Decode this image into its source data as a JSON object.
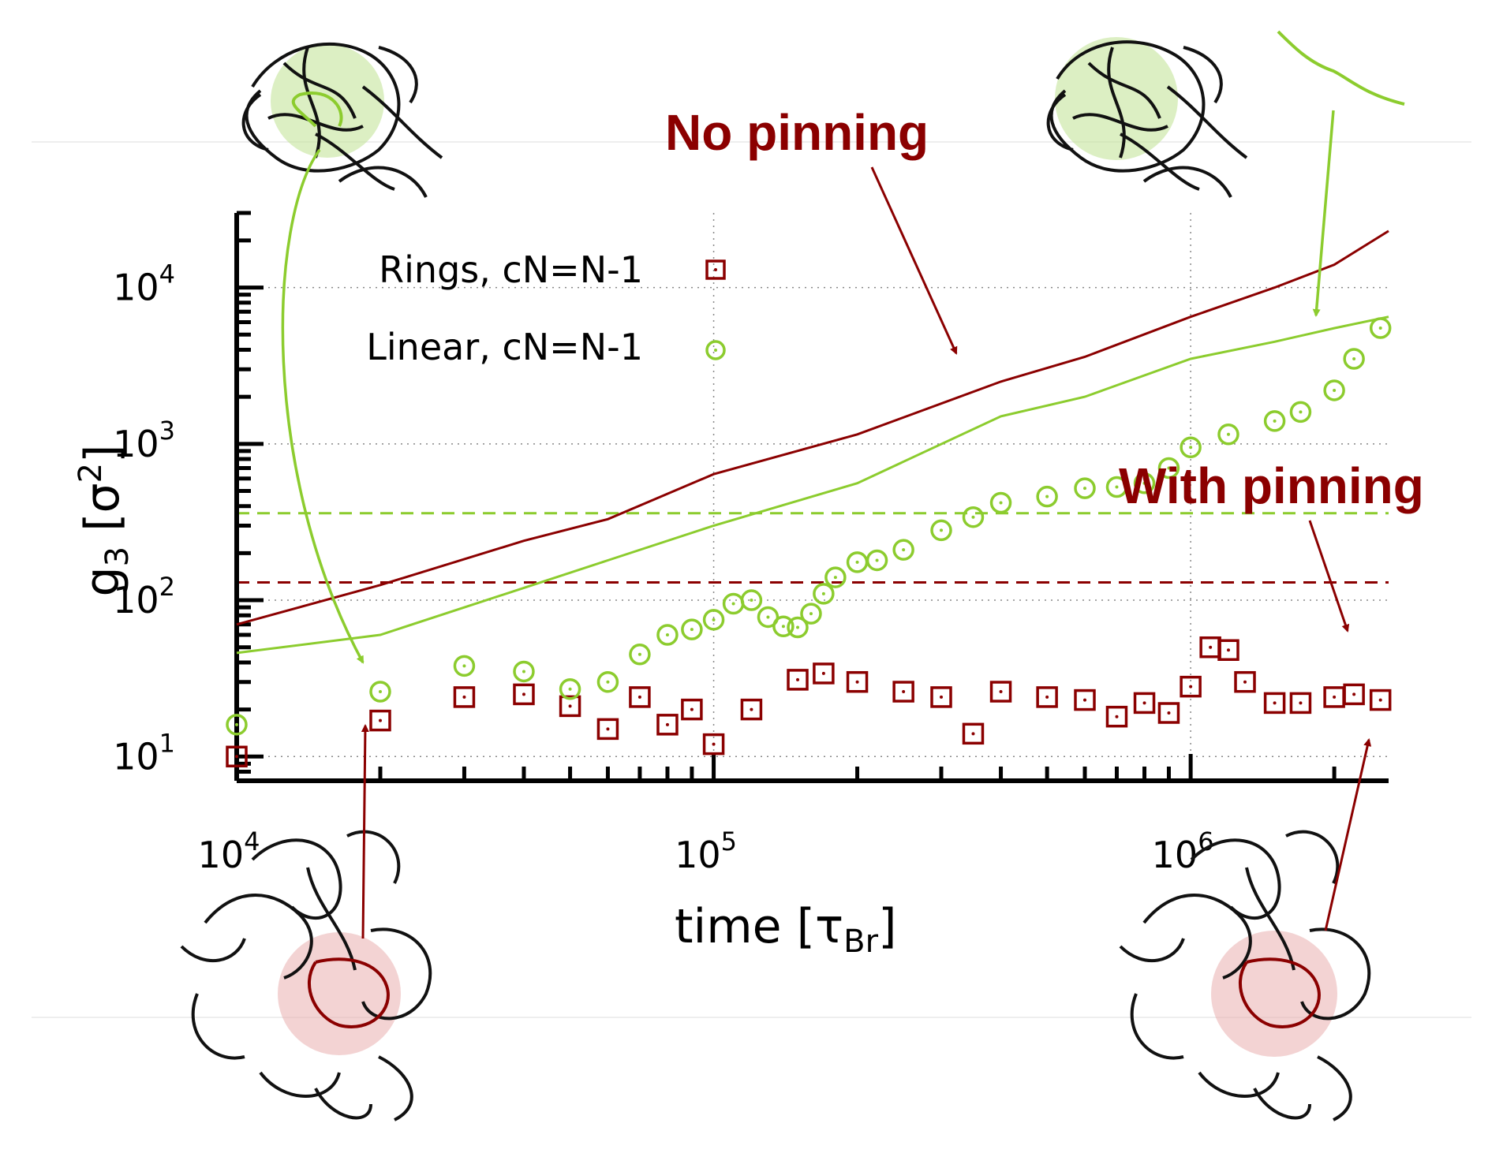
{
  "chart_data": {
    "type": "scatter",
    "title": "",
    "xlabel": "time [τBr]",
    "ylabel": "g3 [σ2]",
    "xscale": "log",
    "yscale": "log",
    "xlim": [
      10000,
      2600000
    ],
    "ylim": [
      7,
      30000
    ],
    "x_ticks": [
      {
        "base": "10",
        "exp": "4"
      },
      {
        "base": "10",
        "exp": "5"
      },
      {
        "base": "10",
        "exp": "6"
      }
    ],
    "y_ticks": [
      {
        "base": "10",
        "exp": "1"
      },
      {
        "base": "10",
        "exp": "2"
      },
      {
        "base": "10",
        "exp": "3"
      },
      {
        "base": "10",
        "exp": "4"
      }
    ],
    "grid": "dotted at decades",
    "legend": {
      "placement": "top-left",
      "entries": [
        "Rings, cN=N-1",
        "Linear, cN=N-1"
      ]
    },
    "colors": {
      "rings": "#8b0000",
      "linear": "#8ccc2e"
    },
    "series": [
      {
        "name": "Rings, cN=N-1",
        "kind": "markers-square",
        "x": [
          10000,
          20000,
          30000,
          40000,
          50000,
          60000,
          70000,
          80000,
          90000,
          100000,
          120000,
          150000,
          170000,
          200000,
          250000,
          300000,
          350000,
          400000,
          500000,
          600000,
          700000,
          800000,
          900000,
          1000000,
          1100000,
          1200000,
          1300000,
          1500000,
          1700000,
          2000000,
          2200000,
          2500000
        ],
        "y": [
          10,
          17,
          24,
          25,
          21,
          15,
          24,
          16,
          20,
          12,
          20,
          31,
          34,
          30,
          26,
          24,
          14,
          26,
          24,
          23,
          18,
          22,
          19,
          28,
          50,
          48,
          30,
          22,
          22,
          24,
          25,
          23
        ]
      },
      {
        "name": "Linear, cN=N-1",
        "kind": "markers-circle",
        "x": [
          10000,
          20000,
          30000,
          40000,
          50000,
          60000,
          70000,
          80000,
          90000,
          100000,
          110000,
          120000,
          130000,
          140000,
          150000,
          160000,
          170000,
          180000,
          200000,
          220000,
          250000,
          300000,
          350000,
          400000,
          500000,
          600000,
          700000,
          800000,
          900000,
          1000000,
          1200000,
          1500000,
          1700000,
          2000000,
          2200000,
          2500000
        ],
        "y": [
          16,
          26,
          38,
          35,
          27,
          30,
          45,
          60,
          65,
          75,
          95,
          100,
          78,
          68,
          67,
          82,
          110,
          140,
          175,
          180,
          210,
          280,
          340,
          420,
          460,
          520,
          530,
          560,
          700,
          950,
          1150,
          1400,
          1600,
          2200,
          3500,
          5500
        ]
      },
      {
        "name": "",
        "kind": "line",
        "color": "rings",
        "x": [
          10000,
          20000,
          40000,
          60000,
          100000,
          200000,
          400000,
          600000,
          1000000,
          1500000,
          2000000,
          2600000
        ],
        "y": [
          70,
          125,
          240,
          330,
          640,
          1150,
          2500,
          3600,
          6500,
          10000,
          14000,
          23000
        ]
      },
      {
        "name": "",
        "kind": "line",
        "color": "linear",
        "x": [
          10000,
          20000,
          40000,
          60000,
          100000,
          200000,
          400000,
          600000,
          1000000,
          1500000,
          2000000,
          2600000
        ],
        "y": [
          46,
          60,
          120,
          180,
          300,
          560,
          1500,
          2000,
          3500,
          4500,
          5500,
          6500
        ]
      }
    ],
    "hlines": [
      {
        "y": 360,
        "color": "linear",
        "style": "dashed"
      },
      {
        "y": 130,
        "color": "rings",
        "style": "dashed"
      }
    ],
    "annotations": [
      "No pinning",
      "With pinning"
    ]
  }
}
